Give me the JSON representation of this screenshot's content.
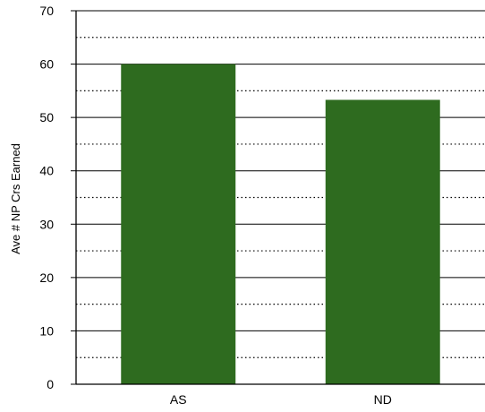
{
  "chart_data": {
    "type": "bar",
    "title": "",
    "xlabel": "",
    "ylabel": "Ave # NP Crs Earned",
    "categories": [
      "AS",
      "ND"
    ],
    "values": [
      60,
      53.3
    ],
    "ylim": [
      0,
      70
    ],
    "yticks": [
      "0",
      "10",
      "20",
      "30",
      "40",
      "50",
      "60",
      "70"
    ],
    "grid": {
      "major": "solid",
      "minor": "dotted"
    },
    "bar_color": "#2e6b1f",
    "legend": "none"
  }
}
